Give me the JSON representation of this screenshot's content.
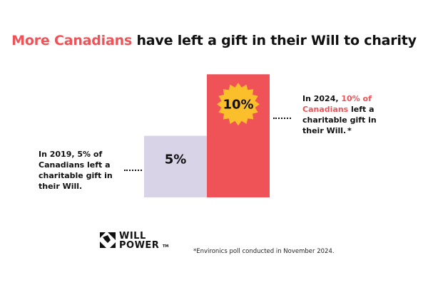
{
  "title": {
    "highlight": "More Canadians",
    "rest": " have left a gift in their Will to charity"
  },
  "chart_data": {
    "type": "bar",
    "categories": [
      "2019",
      "2024"
    ],
    "values": [
      5,
      10
    ],
    "value_labels": [
      "5%",
      "10%"
    ],
    "unit": "%",
    "colors": [
      "#d9d3e8",
      "#f05357"
    ],
    "highlight_badge_color": "#fbbf2c",
    "ylim": [
      0,
      11
    ],
    "grid": false,
    "legend": "none"
  },
  "annotations": {
    "left": "In 2019, 5% of Canadians left a charitable gift in their Will.",
    "right_pre": "In 2024, ",
    "right_highlight": "10% of Canadians",
    "right_post": " left a charitable gift in their Will.",
    "asterisk": "*"
  },
  "logo": {
    "line1": "WILL",
    "line2": "POWER",
    "tm": "TM",
    "icon": "will-power-logo-mark"
  },
  "footnote": "*Environics poll conducted in November 2024."
}
